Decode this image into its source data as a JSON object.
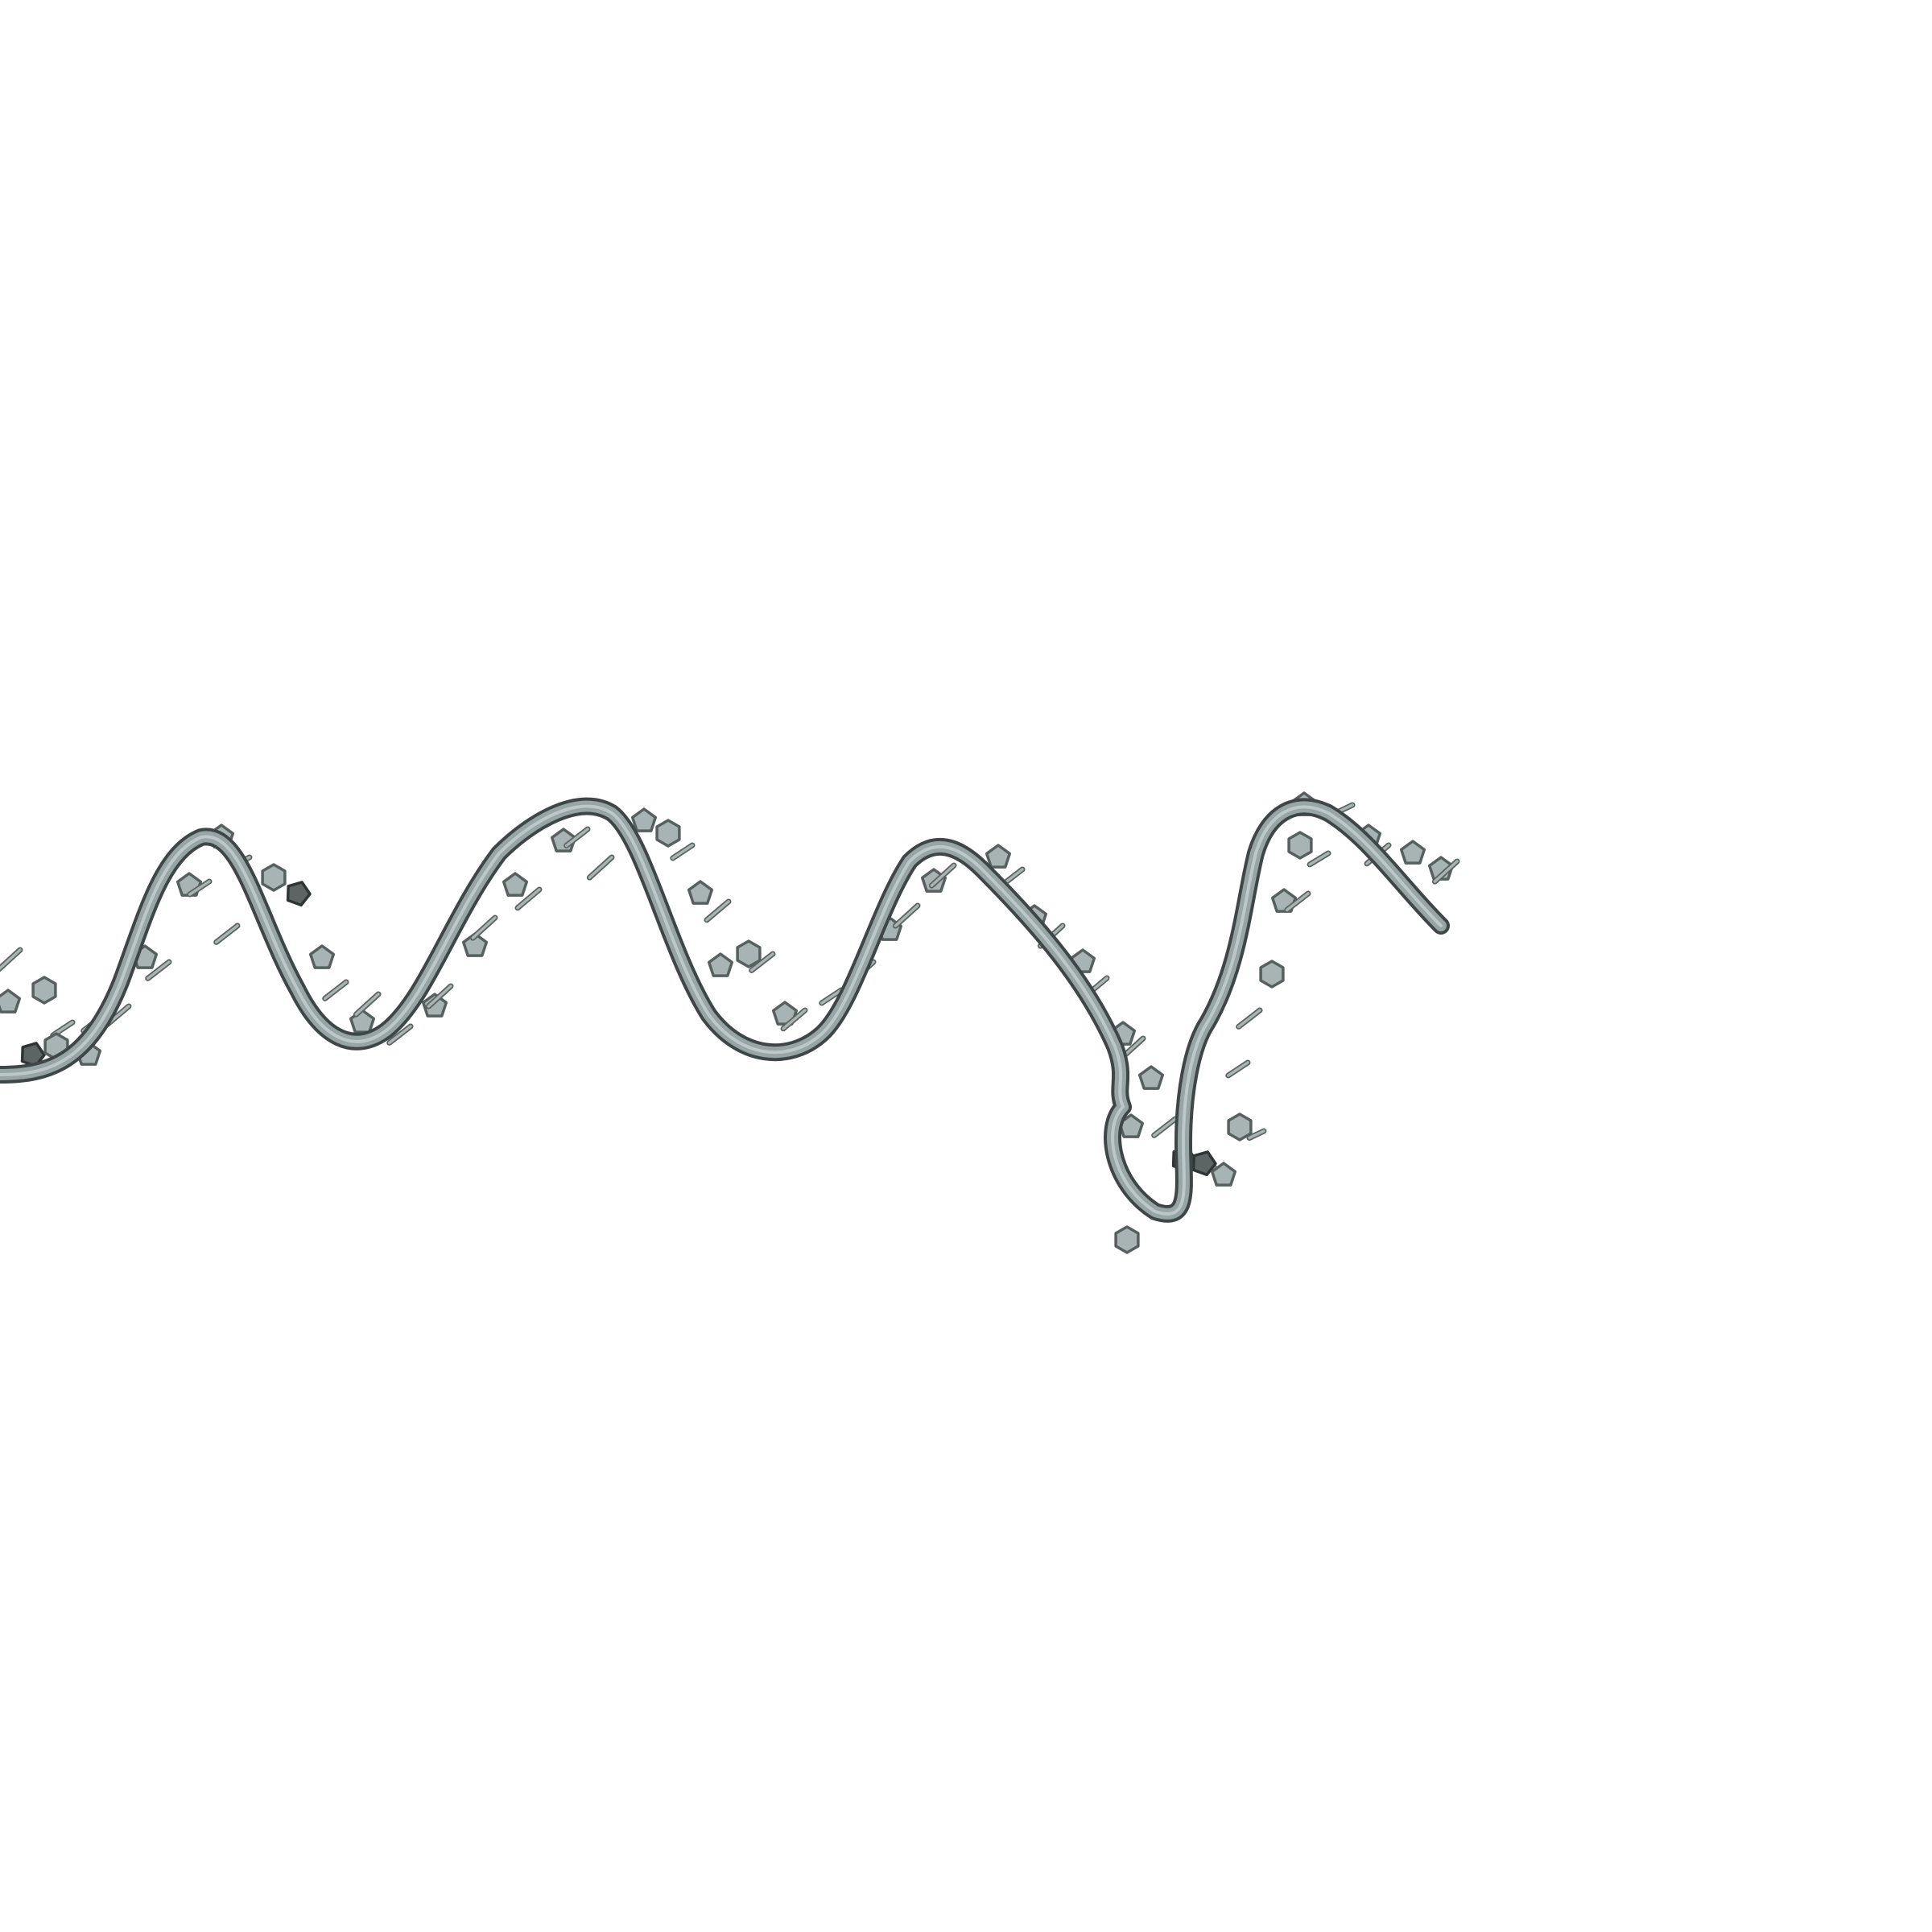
{
  "scene": {
    "subject": "nucleic-acid-ribbon",
    "background_color": "#ffffff",
    "colors": {
      "backbone": "#98a5a5",
      "backbone_edge": "#3f4647",
      "base_fill": "#a8b4b3",
      "base_edge": "#56605f",
      "stacked_base_fill": "#5c6564"
    }
  }
}
